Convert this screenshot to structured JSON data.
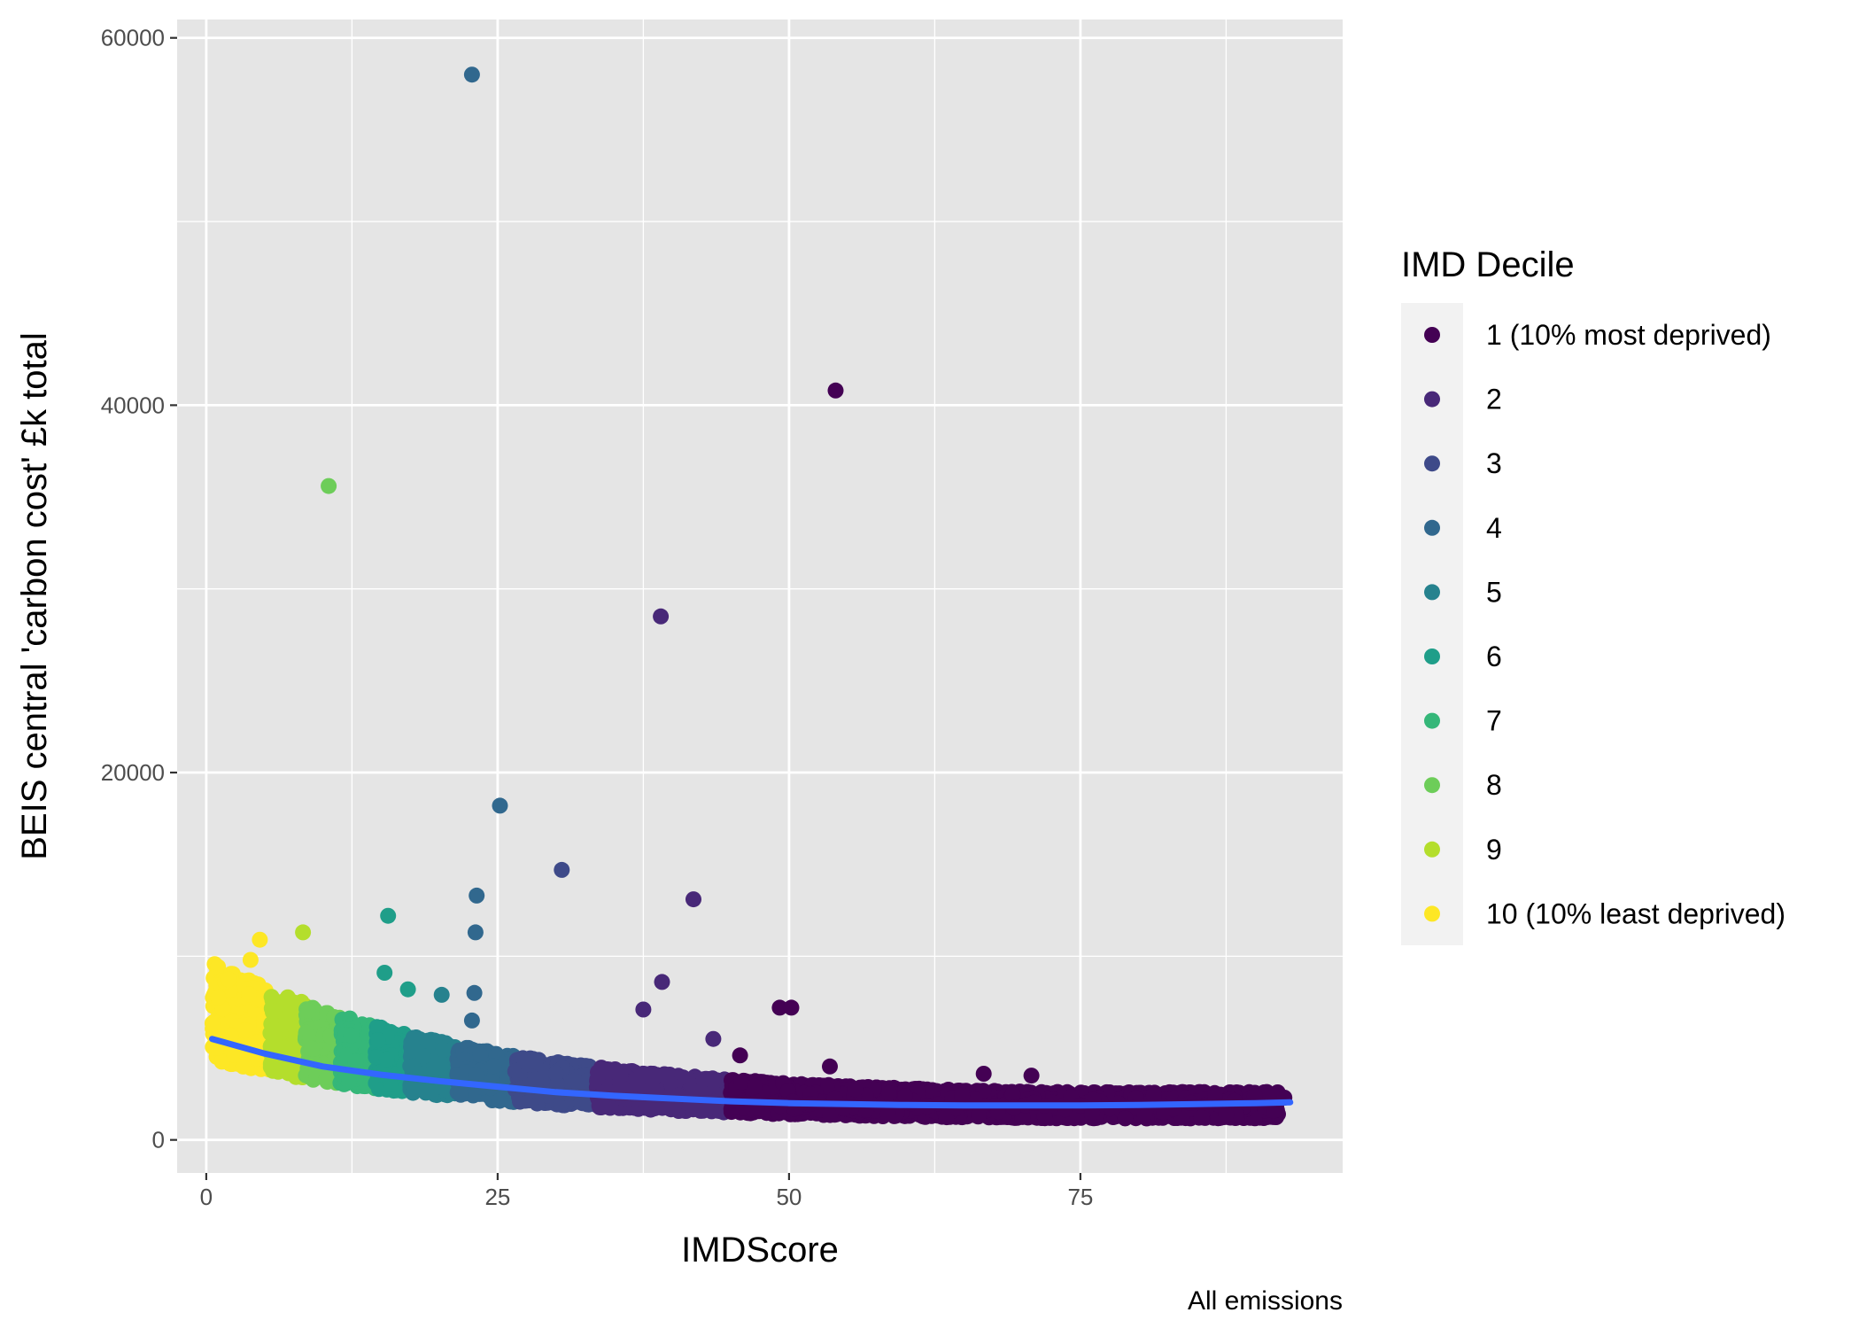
{
  "chart_data": {
    "type": "scatter",
    "xlabel": "IMDScore",
    "ylabel": "BEIS central 'carbon cost' £k total",
    "caption": "All emissions",
    "xlim": [
      -2.5,
      97.5
    ],
    "ylim": [
      -1800,
      61000
    ],
    "x_ticks": [
      0,
      25,
      50,
      75
    ],
    "x_tick_labels": [
      "0",
      "25",
      "50",
      "75"
    ],
    "y_ticks": [
      0,
      20000,
      40000,
      60000
    ],
    "y_tick_labels": [
      "0",
      "20000",
      "40000",
      "60000"
    ],
    "grid": true,
    "legend": {
      "title": "IMD Decile",
      "position": "right",
      "entries": [
        {
          "label": "1 (10% most deprived)",
          "color": "#440154"
        },
        {
          "label": "2",
          "color": "#482878"
        },
        {
          "label": "3",
          "color": "#3E4A89"
        },
        {
          "label": "4",
          "color": "#31688E"
        },
        {
          "label": "5",
          "color": "#26828E"
        },
        {
          "label": "6",
          "color": "#1F9E89"
        },
        {
          "label": "7",
          "color": "#35B779"
        },
        {
          "label": "8",
          "color": "#6DCD59"
        },
        {
          "label": "9",
          "color": "#B4DE2C"
        },
        {
          "label": "10 (10% least deprived)",
          "color": "#FDE725"
        }
      ]
    },
    "trend_line": {
      "color": "#3366FF",
      "x": [
        0.5,
        5,
        10,
        15,
        20,
        25,
        30,
        35,
        40,
        45,
        50,
        55,
        60,
        65,
        70,
        75,
        80,
        85,
        90,
        93
      ],
      "y": [
        5500,
        4700,
        4000,
        3550,
        3200,
        2900,
        2600,
        2400,
        2250,
        2100,
        2000,
        1950,
        1900,
        1880,
        1880,
        1880,
        1900,
        1950,
        2000,
        2050
      ]
    },
    "outliers": [
      {
        "x": 22.8,
        "y": 58000,
        "decile": 4
      },
      {
        "x": 54.0,
        "y": 40800,
        "decile": 1
      },
      {
        "x": 10.5,
        "y": 35600,
        "decile": 8
      },
      {
        "x": 39.0,
        "y": 28500,
        "decile": 2
      },
      {
        "x": 25.2,
        "y": 18200,
        "decile": 4
      },
      {
        "x": 30.5,
        "y": 14700,
        "decile": 3
      },
      {
        "x": 41.8,
        "y": 13100,
        "decile": 2
      },
      {
        "x": 23.2,
        "y": 13300,
        "decile": 4
      },
      {
        "x": 15.6,
        "y": 12200,
        "decile": 6
      },
      {
        "x": 23.1,
        "y": 11300,
        "decile": 4
      },
      {
        "x": 8.3,
        "y": 11300,
        "decile": 9
      },
      {
        "x": 4.6,
        "y": 10900,
        "decile": 10
      },
      {
        "x": 3.8,
        "y": 9800,
        "decile": 10
      },
      {
        "x": 15.3,
        "y": 9100,
        "decile": 6
      },
      {
        "x": 39.1,
        "y": 8600,
        "decile": 2
      },
      {
        "x": 17.3,
        "y": 8200,
        "decile": 6
      },
      {
        "x": 20.2,
        "y": 7900,
        "decile": 5
      },
      {
        "x": 23.0,
        "y": 8000,
        "decile": 4
      },
      {
        "x": 37.5,
        "y": 7100,
        "decile": 2
      },
      {
        "x": 49.2,
        "y": 7200,
        "decile": 1
      },
      {
        "x": 50.2,
        "y": 7200,
        "decile": 1
      },
      {
        "x": 22.8,
        "y": 6500,
        "decile": 4
      },
      {
        "x": 43.5,
        "y": 5500,
        "decile": 2
      },
      {
        "x": 45.8,
        "y": 4600,
        "decile": 1
      },
      {
        "x": 53.5,
        "y": 4000,
        "decile": 1
      },
      {
        "x": 66.7,
        "y": 3600,
        "decile": 1
      },
      {
        "x": 70.8,
        "y": 3500,
        "decile": 1
      },
      {
        "x": 92.5,
        "y": 2300,
        "decile": 1
      },
      {
        "x": 87.5,
        "y": 1400,
        "decile": 1
      }
    ],
    "decile_x_ranges": [
      {
        "decile": 10,
        "x": [
          0.5,
          5.5
        ]
      },
      {
        "decile": 9,
        "x": [
          5.5,
          8.5
        ]
      },
      {
        "decile": 8,
        "x": [
          8.5,
          11.5
        ]
      },
      {
        "decile": 7,
        "x": [
          11.5,
          14.5
        ]
      },
      {
        "decile": 6,
        "x": [
          14.5,
          17.5
        ]
      },
      {
        "decile": 5,
        "x": [
          17.5,
          21.5
        ]
      },
      {
        "decile": 4,
        "x": [
          21.5,
          26.5
        ]
      },
      {
        "decile": 3,
        "x": [
          26.5,
          33.5
        ]
      },
      {
        "decile": 2,
        "x": [
          33.5,
          45.0
        ]
      },
      {
        "decile": 1,
        "x": [
          45.0,
          92.0
        ]
      }
    ]
  }
}
